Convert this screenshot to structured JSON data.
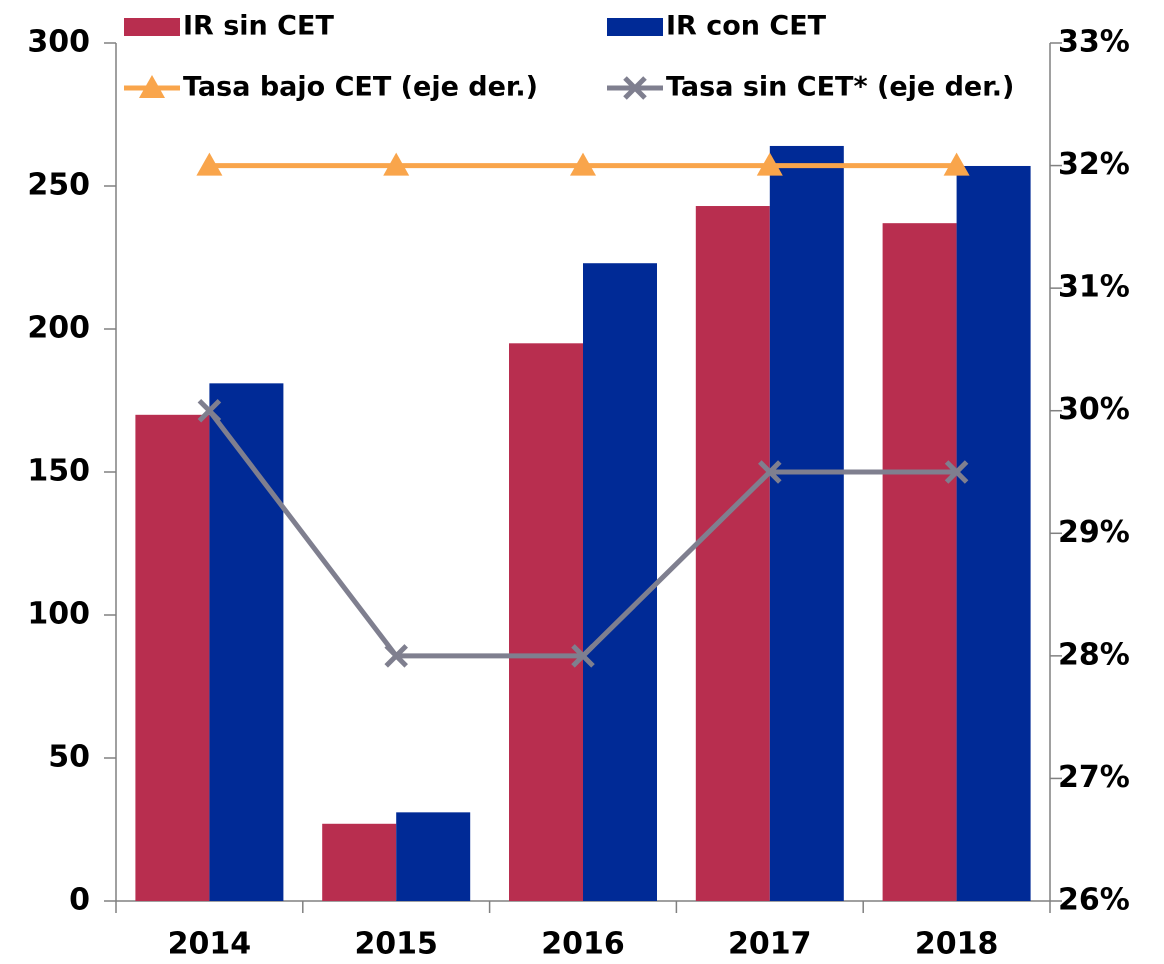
{
  "chart_data": {
    "type": "bar",
    "categories": [
      "2014",
      "2015",
      "2016",
      "2017",
      "2018"
    ],
    "series": [
      {
        "name": "IR sin CET",
        "type": "bar",
        "color": "#b82e4f",
        "values": [
          170,
          27,
          195,
          243,
          237
        ]
      },
      {
        "name": "IR con CET",
        "type": "bar",
        "color": "#002a96",
        "values": [
          181,
          31,
          223,
          264,
          257
        ]
      },
      {
        "name": "Tasa bajo CET (eje der.)",
        "type": "line",
        "marker": "triangle",
        "axis": "y2",
        "color": "#f9a54b",
        "values": [
          32,
          32,
          32,
          32,
          32
        ]
      },
      {
        "name": "Tasa sin CET* (eje der.)",
        "type": "line",
        "marker": "x",
        "axis": "y2",
        "color": "#7f7f8f",
        "values": [
          30,
          28,
          28,
          29.5,
          29.5
        ]
      }
    ],
    "ylim": [
      0,
      300
    ],
    "yticks": [
      0,
      50,
      100,
      150,
      200,
      250,
      300
    ],
    "y2lim": [
      26,
      33
    ],
    "y2ticks": [
      {
        "value": 26,
        "label": "26%"
      },
      {
        "value": 27,
        "label": "27%"
      },
      {
        "value": 28,
        "label": "28%"
      },
      {
        "value": 29,
        "label": "29%"
      },
      {
        "value": 30,
        "label": "30%"
      },
      {
        "value": 31,
        "label": "31%"
      },
      {
        "value": 32,
        "label": "32%"
      },
      {
        "value": 33,
        "label": "33%"
      }
    ],
    "grid": false
  }
}
